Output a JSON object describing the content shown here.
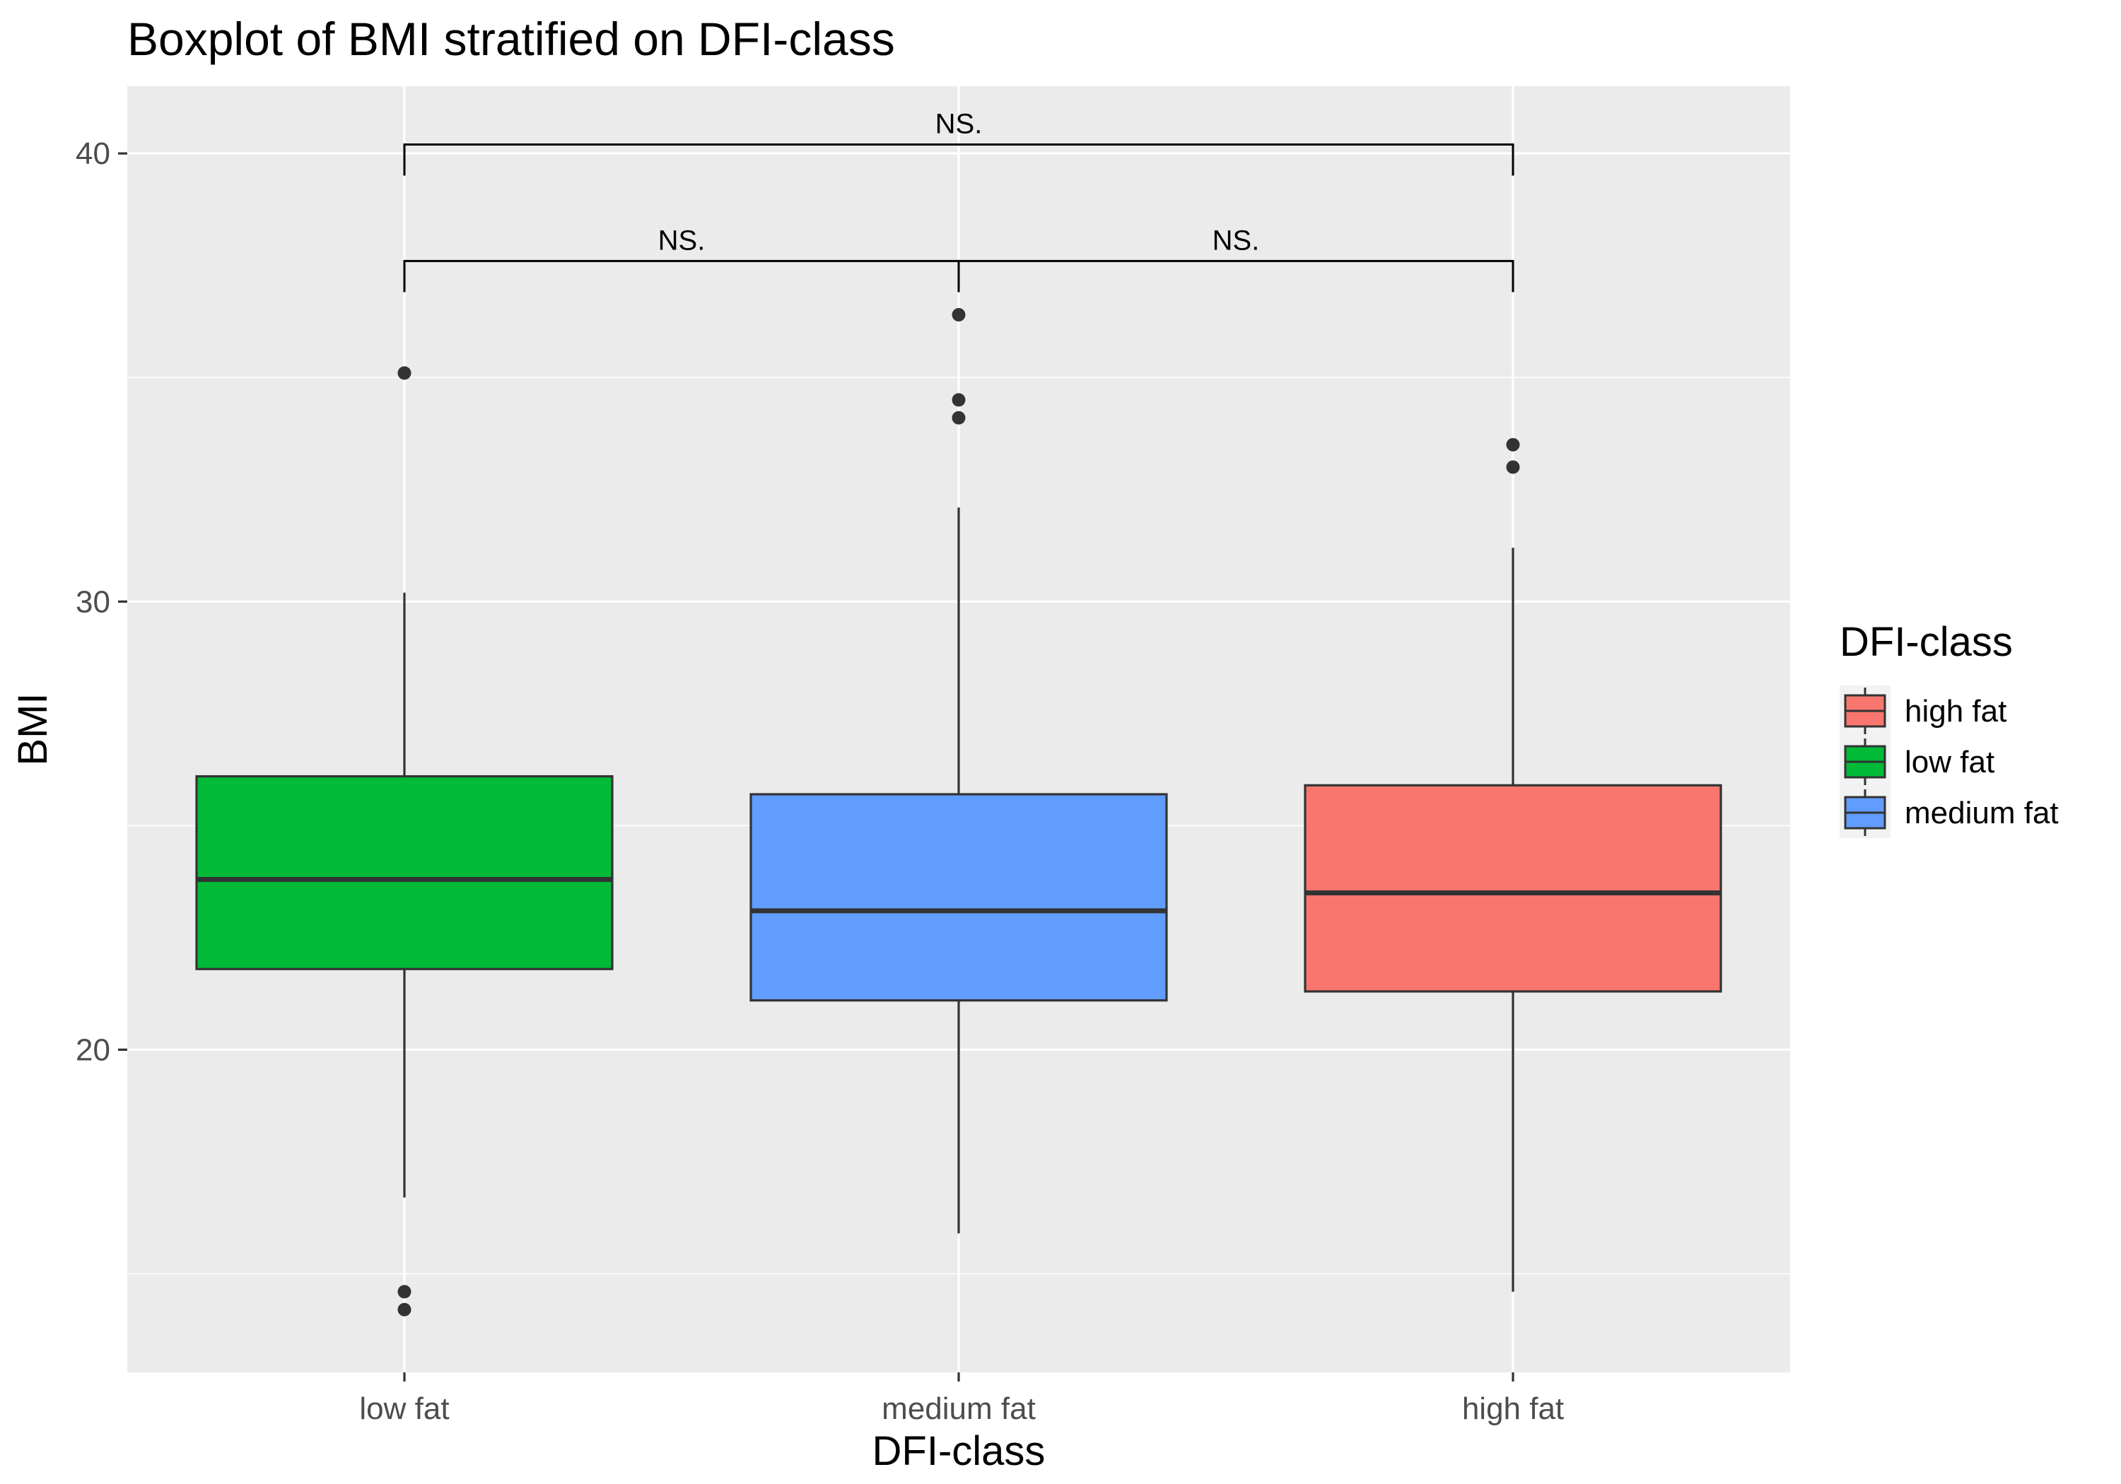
{
  "chart_data": {
    "type": "boxplot",
    "title": "Boxplot of BMI stratified on DFI-class",
    "xlabel": "DFI-class",
    "ylabel": "BMI",
    "ylim": [
      12.8,
      41.5
    ],
    "yticks": [
      20,
      30,
      40
    ],
    "categories": [
      "low fat",
      "medium fat",
      "high fat"
    ],
    "grid": true,
    "boxes": [
      {
        "category": "low fat",
        "whisker_low": 16.7,
        "q1": 21.8,
        "median": 23.8,
        "q3": 26.1,
        "whisker_high": 30.2,
        "outliers": [
          35.1,
          14.6,
          14.2
        ],
        "color": "#00BA38"
      },
      {
        "category": "medium fat",
        "whisker_low": 15.9,
        "q1": 21.1,
        "median": 23.1,
        "q3": 25.7,
        "whisker_high": 32.1,
        "outliers": [
          36.4,
          34.5,
          34.1
        ],
        "color": "#619CFF"
      },
      {
        "category": "high fat",
        "whisker_low": 14.6,
        "q1": 21.3,
        "median": 23.5,
        "q3": 25.9,
        "whisker_high": 31.2,
        "outliers": [
          33.5,
          33.0
        ],
        "color": "#F8766D"
      }
    ],
    "comparisons": [
      {
        "from": "low fat",
        "to": "medium fat",
        "y": 37.6,
        "label": "NS."
      },
      {
        "from": "medium fat",
        "to": "high fat",
        "y": 37.6,
        "label": "NS."
      },
      {
        "from": "low fat",
        "to": "high fat",
        "y": 40.2,
        "label": "NS."
      }
    ],
    "legend": {
      "title": "DFI-class",
      "position": "right",
      "items": [
        {
          "label": "high fat",
          "color": "#F8766D"
        },
        {
          "label": "low fat",
          "color": "#00BA38"
        },
        {
          "label": "medium fat",
          "color": "#619CFF"
        }
      ]
    }
  }
}
